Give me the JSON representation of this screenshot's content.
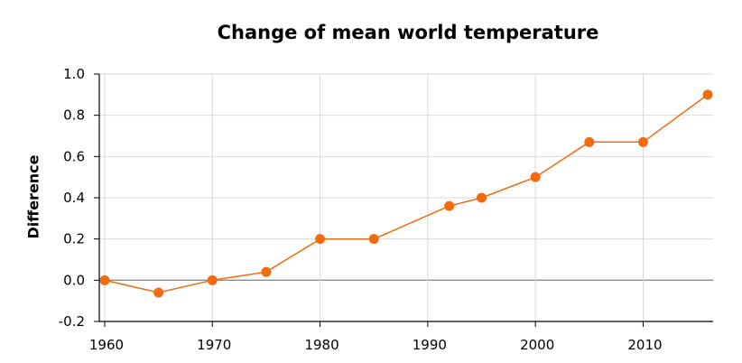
{
  "chart_data": {
    "type": "line",
    "title": "Change of mean world temperature",
    "xlabel": "",
    "ylabel": "Difference",
    "xlim": [
      1959.5,
      2016.5
    ],
    "ylim": [
      -0.2,
      1.0
    ],
    "xticks": [
      1960,
      1970,
      1980,
      1990,
      2000,
      2010
    ],
    "yticks": [
      -0.2,
      0.0,
      0.2,
      0.4,
      0.6,
      0.8,
      1.0
    ],
    "ytick_labels": [
      "-0.2",
      "0.0",
      "0.2",
      "0.4",
      "0.6",
      "0.8",
      "1.0"
    ],
    "grid": true,
    "series": [
      {
        "color": "#f26b0f",
        "x": [
          1960,
          1965,
          1970,
          1975,
          1980,
          1985,
          1992,
          1995,
          2000,
          2005,
          2010,
          2016
        ],
        "y": [
          0.0,
          -0.06,
          0.0,
          0.04,
          0.2,
          0.2,
          0.36,
          0.4,
          0.5,
          0.67,
          0.67,
          0.9
        ]
      }
    ]
  }
}
